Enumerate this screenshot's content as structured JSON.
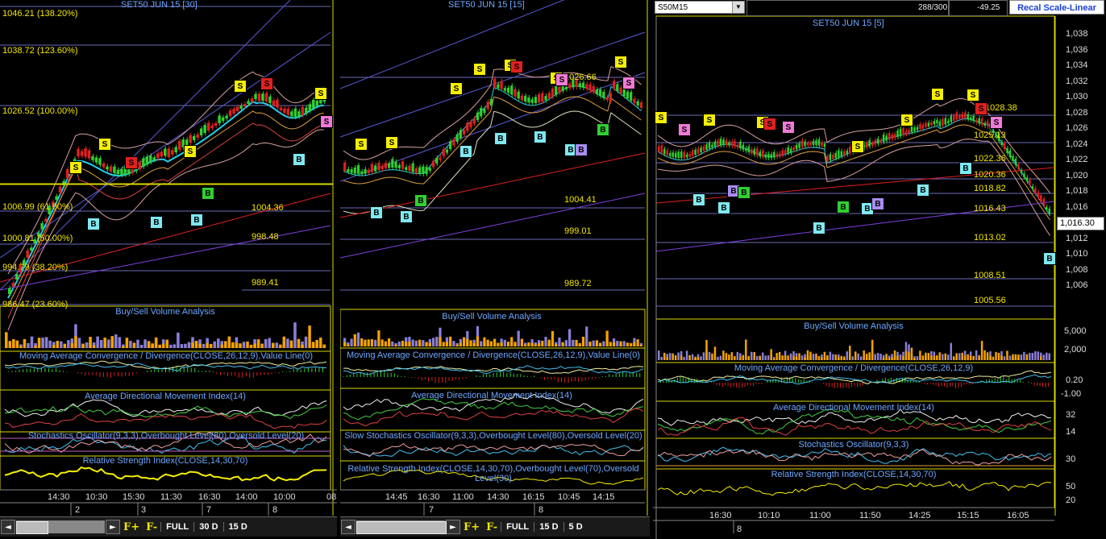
{
  "panel1": {
    "title": "SET50 JUN 15   [30]",
    "fib_levels": [
      {
        "label": "1046.21 (138.20%)"
      },
      {
        "label": "1038.72 (123.60%)"
      },
      {
        "label": "1026.52 (100.00%)"
      },
      {
        "label": "1006.99 (61.80%)"
      },
      {
        "label": "1000.81 (50.00%)"
      },
      {
        "label": "994.79 (38.20%)"
      },
      {
        "label": "986.47 (23.60%)"
      }
    ],
    "price_marks": [
      "1004.36",
      "998.48",
      "989.41"
    ],
    "indicators": {
      "volume": "Buy/Sell Volume Analysis",
      "macd": "Moving Average Convergence / Divergence(CLOSE,26,12,9),Value Line(0)",
      "adx": "Average Directional Movement Index(14)",
      "stoch": "Stochastics Oscillator(9,3,3),Overbought Level(80),Oversold Level(20)",
      "rsi": "Relative Strength Index(CLOSE,14,30,70)"
    },
    "time_ticks": [
      "14:30",
      "10:30",
      "15:30",
      "11:30",
      "16:30",
      "14:00",
      "10:00"
    ],
    "date_ticks": [
      "2",
      "3",
      "7",
      "8"
    ],
    "right_edge_label": "08"
  },
  "panel2": {
    "title": "SET50 JUN 15   [15]",
    "price_marks": [
      "1026.66",
      "1004.41",
      "999.01",
      "989.72"
    ],
    "indicators": {
      "volume": "Buy/Sell Volume Analysis",
      "macd": "Moving Average Convergence / Divergence(CLOSE,26,12,9),Value Line(0)",
      "adx": "Average Directional Movement Index(14)",
      "stoch": "Slow Stochastics Oscillator(9,3,3),Overbought Level(80),Oversold Level(20)",
      "rsi": "Relative Strength Index(CLOSE,14,30,70),Overbought Level(70),Oversold Level(30)"
    },
    "time_ticks": [
      "14:45",
      "16:30",
      "11:00",
      "14:30",
      "16:15",
      "10:45",
      "14:15"
    ],
    "date_ticks": [
      "7",
      "8"
    ]
  },
  "panel3": {
    "symbol": "S50M15",
    "counter": "288/300",
    "change": "-49.25",
    "recal_button": "Recal Scale-Linear",
    "title": "SET50 JUN 15   [5]",
    "price_marks": [
      "1028.38",
      "1025.13",
      "1022.36",
      "1020.36",
      "1018.82",
      "1016.43",
      "1013.02",
      "1008.51",
      "1005.56"
    ],
    "current_price": "1,016.30",
    "price_axis": [
      "1,038",
      "1,036",
      "1,034",
      "1,032",
      "1,030",
      "1,028",
      "1,026",
      "1,024",
      "1,022",
      "1,020",
      "1,018",
      "1,016",
      "1,014",
      "1,012",
      "1,010",
      "1,008",
      "1,006"
    ],
    "volume_axis": [
      "5,000",
      "2,000"
    ],
    "macd_axis": [
      "0.20",
      "-1.00"
    ],
    "adx_axis": [
      "32",
      "14"
    ],
    "stoch_axis": [
      "30"
    ],
    "rsi_axis": [
      "50",
      "20"
    ],
    "indicators": {
      "volume": "Buy/Sell Volume Analysis",
      "macd": "Moving Average Convergence / Divergence(CLOSE,26,12,9)",
      "adx": "Average Directional Movement Index(14)",
      "stoch": "Stochastics Oscillator(9,3,3)",
      "rsi": "Relative Strength Index(CLOSE,14,30,70)"
    },
    "time_ticks": [
      "16:30",
      "10:10",
      "11:00",
      "11:50",
      "14:25",
      "15:15",
      "16:05"
    ],
    "date_ticks": [
      "8"
    ]
  },
  "toolbar": {
    "f_plus": "F+",
    "f_minus": "F-",
    "full": "FULL",
    "range1_p1": "30 D",
    "range2_p1": "15 D",
    "range1_p2": "15 D",
    "range2_p2": "5 D",
    "prev": "◄",
    "next": "►"
  },
  "colors": {
    "signal_sell": "#f5ef00",
    "signal_buy": "#7fe8f0",
    "fib": "#f2e600",
    "indicator_title": "#6ea7ff",
    "bull_candle": "#2fd02f",
    "bear_candle": "#e02020"
  }
}
